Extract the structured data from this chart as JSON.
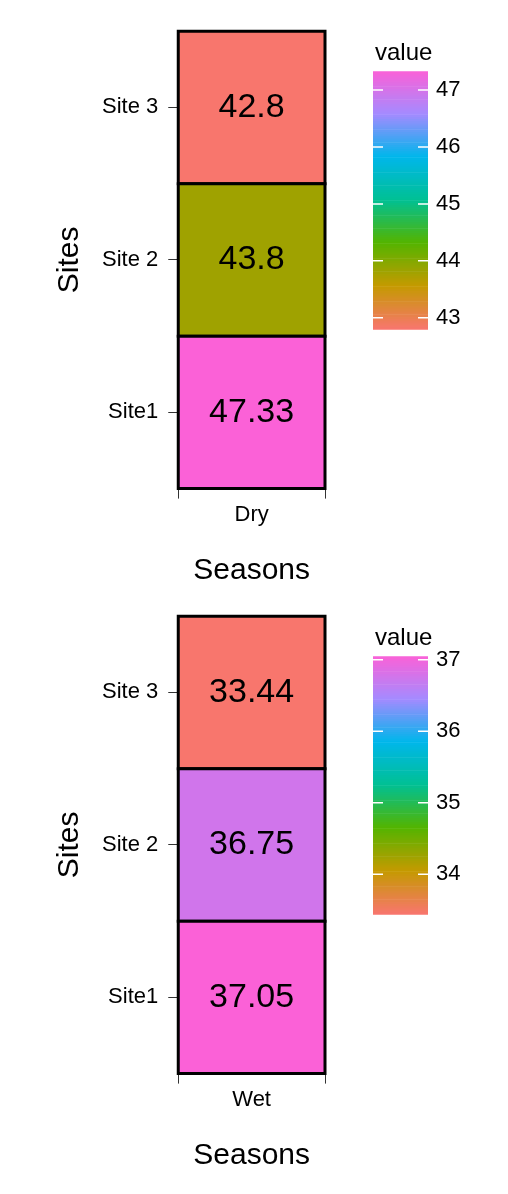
{
  "chart_data": [
    {
      "type": "heatmap",
      "xlabel": "Seasons",
      "ylabel": "Sites",
      "clabel": "value",
      "categories": [
        "Dry"
      ],
      "y_categories": [
        "Site 3",
        "Site 2",
        "Site1"
      ],
      "cells": [
        [
          42.8
        ],
        [
          43.8
        ],
        [
          47.33
        ]
      ],
      "clim": [
        42.8,
        47.33
      ],
      "cticks": [
        43,
        44,
        45,
        46,
        47
      ],
      "data_labels": true
    },
    {
      "type": "heatmap",
      "xlabel": "Seasons",
      "ylabel": "Sites",
      "clabel": "value",
      "categories": [
        "Wet"
      ],
      "y_categories": [
        "Site 3",
        "Site 2",
        "Site1"
      ],
      "cells": [
        [
          33.44
        ],
        [
          36.75
        ],
        [
          37.05
        ]
      ],
      "clim": [
        33.44,
        37.05
      ],
      "cticks": [
        34,
        35,
        36,
        37
      ],
      "data_labels": true
    }
  ]
}
